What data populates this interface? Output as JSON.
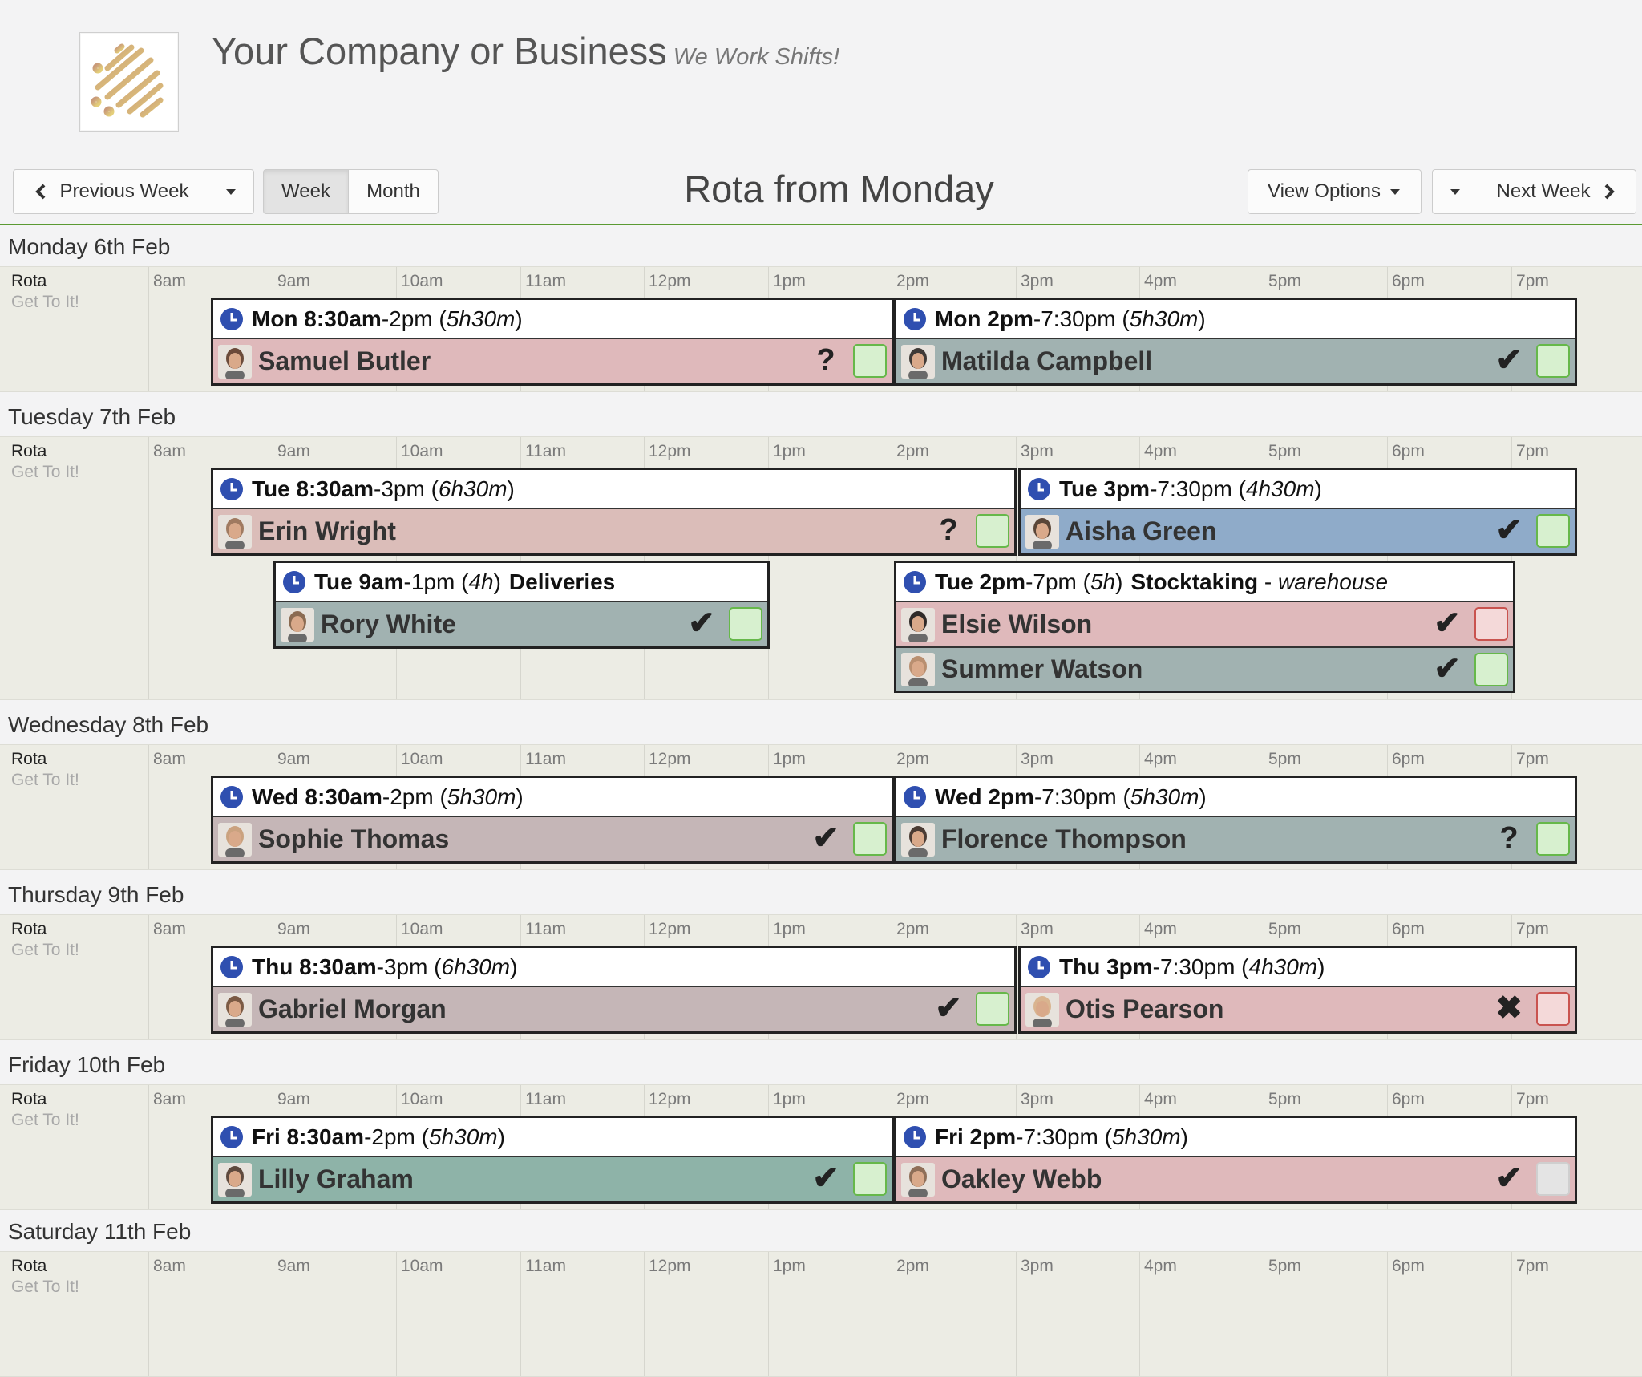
{
  "header": {
    "company_name": "Your Company or Business",
    "tagline": "We Work Shifts!",
    "logo_icon": "striped-logo-icon"
  },
  "toolbar": {
    "prev_week": "Previous Week",
    "week": "Week",
    "month": "Month",
    "title": "Rota from Monday",
    "view_options": "View Options",
    "next_week": "Next Week",
    "active_view": "Week"
  },
  "hours": [
    "8am",
    "9am",
    "10am",
    "11am",
    "12pm",
    "1pm",
    "2pm",
    "3pm",
    "4pm",
    "5pm",
    "6pm",
    "7pm"
  ],
  "rota_label": "Rota",
  "rota_sub": "Get To It!",
  "colors": {
    "accent_rule": "#5a9a32",
    "pink": "#dfb9bb",
    "teal_grey": "#a1b2b1",
    "blue": "#8fabc9",
    "mauve": "#c5b6b7",
    "sea": "#8eb3a8",
    "rose": "#dbbdb9"
  },
  "days": [
    {
      "label": "Monday 6th Feb",
      "shifts": [
        {
          "day": "Mon",
          "start": "8:30am",
          "end": "2pm",
          "duration": "5h30m",
          "title": "",
          "location": "",
          "people": [
            {
              "name": "Samuel Butler",
              "status": "question",
              "box": "green",
              "color": "pink"
            }
          ]
        },
        {
          "day": "Mon",
          "start": "2pm",
          "end": "7:30pm",
          "duration": "5h30m",
          "title": "",
          "location": "",
          "people": [
            {
              "name": "Matilda Campbell",
              "status": "check",
              "box": "green",
              "color": "teal_grey"
            }
          ]
        }
      ]
    },
    {
      "label": "Tuesday 7th Feb",
      "shifts": [
        {
          "day": "Tue",
          "start": "8:30am",
          "end": "3pm",
          "duration": "6h30m",
          "title": "",
          "location": "",
          "people": [
            {
              "name": "Erin Wright",
              "status": "question",
              "box": "green",
              "color": "rose"
            }
          ]
        },
        {
          "day": "Tue",
          "start": "3pm",
          "end": "7:30pm",
          "duration": "4h30m",
          "title": "",
          "location": "",
          "people": [
            {
              "name": "Aisha Green",
              "status": "check",
              "box": "green",
              "color": "blue"
            }
          ]
        },
        {
          "day": "Tue",
          "start": "9am",
          "end": "1pm",
          "duration": "4h",
          "title": "Deliveries",
          "location": "",
          "people": [
            {
              "name": "Rory White",
              "status": "check",
              "box": "green",
              "color": "teal_grey"
            }
          ]
        },
        {
          "day": "Tue",
          "start": "2pm",
          "end": "7pm",
          "duration": "5h",
          "title": "Stocktaking",
          "location": "warehouse",
          "people": [
            {
              "name": "Elsie Wilson",
              "status": "check",
              "box": "red",
              "color": "pink"
            },
            {
              "name": "Summer Watson",
              "status": "check",
              "box": "green",
              "color": "teal_grey"
            }
          ]
        }
      ]
    },
    {
      "label": "Wednesday 8th Feb",
      "shifts": [
        {
          "day": "Wed",
          "start": "8:30am",
          "end": "2pm",
          "duration": "5h30m",
          "title": "",
          "location": "",
          "people": [
            {
              "name": "Sophie Thomas",
              "status": "check",
              "box": "green",
              "color": "mauve"
            }
          ]
        },
        {
          "day": "Wed",
          "start": "2pm",
          "end": "7:30pm",
          "duration": "5h30m",
          "title": "",
          "location": "",
          "people": [
            {
              "name": "Florence Thompson",
              "status": "question",
              "box": "green",
              "color": "teal_grey"
            }
          ]
        }
      ]
    },
    {
      "label": "Thursday 9th Feb",
      "shifts": [
        {
          "day": "Thu",
          "start": "8:30am",
          "end": "3pm",
          "duration": "6h30m",
          "title": "",
          "location": "",
          "people": [
            {
              "name": "Gabriel Morgan",
              "status": "check",
              "box": "green",
              "color": "mauve"
            }
          ]
        },
        {
          "day": "Thu",
          "start": "3pm",
          "end": "7:30pm",
          "duration": "4h30m",
          "title": "",
          "location": "",
          "people": [
            {
              "name": "Otis Pearson",
              "status": "cross",
              "box": "red",
              "color": "pink"
            }
          ]
        }
      ]
    },
    {
      "label": "Friday 10th Feb",
      "shifts": [
        {
          "day": "Fri",
          "start": "8:30am",
          "end": "2pm",
          "duration": "5h30m",
          "title": "",
          "location": "",
          "people": [
            {
              "name": "Lilly Graham",
              "status": "check",
              "box": "green",
              "color": "sea"
            }
          ]
        },
        {
          "day": "Fri",
          "start": "2pm",
          "end": "7:30pm",
          "duration": "5h30m",
          "title": "",
          "location": "",
          "people": [
            {
              "name": "Oakley Webb",
              "status": "check",
              "box": "grey",
              "color": "pink"
            }
          ]
        }
      ]
    },
    {
      "label": "Saturday 11th Feb",
      "shifts": []
    }
  ]
}
